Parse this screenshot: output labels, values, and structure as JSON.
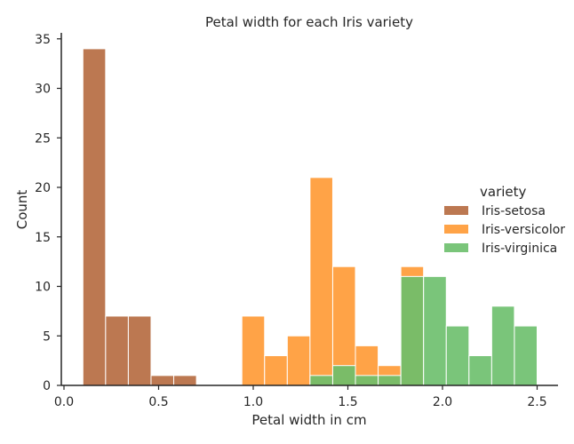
{
  "chart_data": {
    "type": "bar",
    "title": "Petal width for each Iris variety",
    "xlabel": "Petal width in cm",
    "ylabel": "Count",
    "xlim": [
      0.0,
      2.62
    ],
    "ylim": [
      0,
      36
    ],
    "xticks": [
      0.0,
      0.5,
      1.0,
      1.5,
      2.0,
      2.5
    ],
    "xtick_labels": [
      "0.0",
      "0.5",
      "1.0",
      "1.5",
      "2.0",
      "2.5"
    ],
    "yticks": [
      0,
      5,
      10,
      15,
      20,
      25,
      30,
      35
    ],
    "ytick_labels": [
      "0",
      "5",
      "10",
      "15",
      "20",
      "25",
      "30",
      "35"
    ],
    "grid": false,
    "stacked": false,
    "legend": {
      "title": "variety",
      "placement": "center-right"
    },
    "series": [
      {
        "name": "Iris-setosa",
        "color": "#b5693e",
        "bins": [
          {
            "x0": 0.1,
            "x1": 0.22,
            "count": 34
          },
          {
            "x0": 0.22,
            "x1": 0.34,
            "count": 7
          },
          {
            "x0": 0.34,
            "x1": 0.46,
            "count": 7
          },
          {
            "x0": 0.46,
            "x1": 0.58,
            "count": 1
          },
          {
            "x0": 0.58,
            "x1": 0.7,
            "count": 1
          }
        ]
      },
      {
        "name": "Iris-versicolor",
        "color": "#ff9933",
        "bins": [
          {
            "x0": 0.94,
            "x1": 1.06,
            "count": 7
          },
          {
            "x0": 1.06,
            "x1": 1.18,
            "count": 3
          },
          {
            "x0": 1.18,
            "x1": 1.3,
            "count": 5
          },
          {
            "x0": 1.3,
            "x1": 1.42,
            "count": 21
          },
          {
            "x0": 1.42,
            "x1": 1.54,
            "count": 12
          },
          {
            "x0": 1.54,
            "x1": 1.66,
            "count": 4
          },
          {
            "x0": 1.66,
            "x1": 1.78,
            "count": 2
          },
          {
            "x0": 1.78,
            "x1": 1.9,
            "count": 12
          }
        ]
      },
      {
        "name": "Iris-virginica",
        "color": "#6cbf6c",
        "bins": [
          {
            "x0": 1.3,
            "x1": 1.42,
            "count": 1
          },
          {
            "x0": 1.42,
            "x1": 1.54,
            "count": 2
          },
          {
            "x0": 1.54,
            "x1": 1.66,
            "count": 1
          },
          {
            "x0": 1.66,
            "x1": 1.78,
            "count": 1
          },
          {
            "x0": 1.78,
            "x1": 1.9,
            "count": 11
          },
          {
            "x0": 1.9,
            "x1": 2.02,
            "count": 11
          },
          {
            "x0": 2.02,
            "x1": 2.14,
            "count": 6
          },
          {
            "x0": 2.14,
            "x1": 2.26,
            "count": 3
          },
          {
            "x0": 2.26,
            "x1": 2.38,
            "count": 8
          },
          {
            "x0": 2.38,
            "x1": 2.5,
            "count": 6
          }
        ]
      }
    ]
  }
}
